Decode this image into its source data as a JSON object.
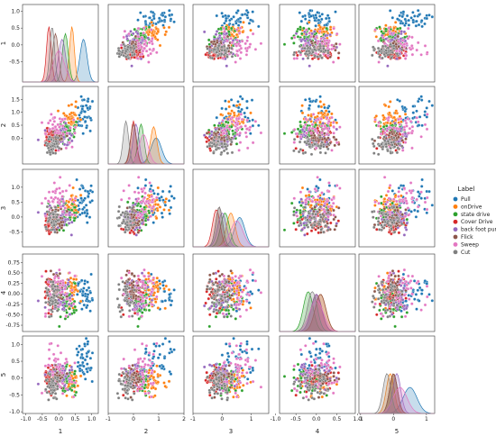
{
  "chart_data": {
    "type": "scatter",
    "subtype": "pairplot",
    "dimensions": [
      "1",
      "2",
      "3",
      "4",
      "5"
    ],
    "axis_labels": [
      "1",
      "2",
      "3",
      "4",
      "5"
    ],
    "diagonal": "kde",
    "off_diagonal": "scatter",
    "grid": false,
    "legend": {
      "title": "Label",
      "position": "right"
    },
    "ranges": [
      [
        -1.1,
        1.2
      ],
      [
        -1.0,
        2.0
      ],
      [
        -1.0,
        1.6
      ],
      [
        -0.9,
        0.95
      ],
      [
        -1.05,
        1.25
      ]
    ],
    "ticks": {
      "x": [
        [
          "-1.0",
          "-0.5",
          "0.0",
          "0.5",
          "1.0"
        ],
        [
          "-1",
          "0",
          "1",
          "2"
        ],
        [
          "-1",
          "0",
          "1"
        ],
        [
          "-1.0",
          "-0.5",
          "0.0",
          "0.5",
          "1.0"
        ],
        [
          "-1",
          "0",
          "1"
        ]
      ],
      "x_values": [
        [
          -1.0,
          -0.5,
          0.0,
          0.5,
          1.0
        ],
        [
          -1,
          0,
          1,
          2
        ],
        [
          -1,
          0,
          1
        ],
        [
          -1.0,
          -0.5,
          0.0,
          0.5,
          1.0
        ],
        [
          -1,
          0,
          1
        ]
      ],
      "y": [
        [
          "-0.5",
          "0.0",
          "0.5",
          "1.0"
        ],
        [
          "0.0",
          "0.5",
          "1.0",
          "1.5"
        ],
        [
          "-0.5",
          "0.0",
          "0.5",
          "1.0"
        ],
        [
          "-0.75",
          "-0.50",
          "-0.25",
          "0.00",
          "0.25",
          "0.50",
          "0.75"
        ],
        [
          "-1.0",
          "-0.5",
          "0.0",
          "0.5",
          "1.0"
        ]
      ],
      "y_values": [
        [
          -0.5,
          0.0,
          0.5,
          1.0
        ],
        [
          0.0,
          0.5,
          1.0,
          1.5
        ],
        [
          -0.5,
          0.0,
          0.5,
          1.0
        ],
        [
          -0.75,
          -0.5,
          -0.25,
          0.0,
          0.25,
          0.5,
          0.75
        ],
        [
          -1.0,
          -0.5,
          0.0,
          0.5,
          1.0
        ]
      ]
    },
    "series": [
      {
        "name": "Pull",
        "color": "#1f77b4",
        "center": [
          0.75,
          0.9,
          0.6,
          0.0,
          0.5
        ],
        "spread": [
          0.18,
          0.35,
          0.3,
          0.22,
          0.35
        ]
      },
      {
        "name": "onDrive",
        "color": "#ff7f0e",
        "center": [
          0.4,
          0.8,
          0.3,
          0.1,
          -0.1
        ],
        "spread": [
          0.12,
          0.22,
          0.25,
          0.22,
          0.2
        ]
      },
      {
        "name": "state drive",
        "color": "#2ca02c",
        "center": [
          0.2,
          0.3,
          0.1,
          -0.2,
          0.0
        ],
        "spread": [
          0.15,
          0.2,
          0.25,
          0.2,
          0.2
        ]
      },
      {
        "name": "Cover Drive",
        "color": "#d62728",
        "center": [
          -0.3,
          0.0,
          -0.2,
          0.0,
          0.0
        ],
        "spread": [
          0.12,
          0.18,
          0.22,
          0.22,
          0.2
        ]
      },
      {
        "name": "back foot punch",
        "color": "#9467bd",
        "center": [
          0.1,
          0.1,
          0.0,
          0.0,
          0.1
        ],
        "spread": [
          0.18,
          0.2,
          0.25,
          0.22,
          0.2
        ]
      },
      {
        "name": "Flick",
        "color": "#8c564b",
        "center": [
          -0.1,
          0.0,
          -0.1,
          0.1,
          0.0
        ],
        "spread": [
          0.15,
          0.2,
          0.2,
          0.22,
          0.2
        ]
      },
      {
        "name": "Sweep",
        "color": "#e377c2",
        "center": [
          0.0,
          0.4,
          0.5,
          0.0,
          0.2
        ],
        "spread": [
          0.28,
          0.3,
          0.35,
          0.28,
          0.35
        ]
      },
      {
        "name": "Cut",
        "color": "#7f7f7f",
        "center": [
          -0.2,
          -0.3,
          -0.1,
          -0.1,
          -0.2
        ],
        "spread": [
          0.12,
          0.18,
          0.2,
          0.2,
          0.2
        ]
      }
    ]
  }
}
